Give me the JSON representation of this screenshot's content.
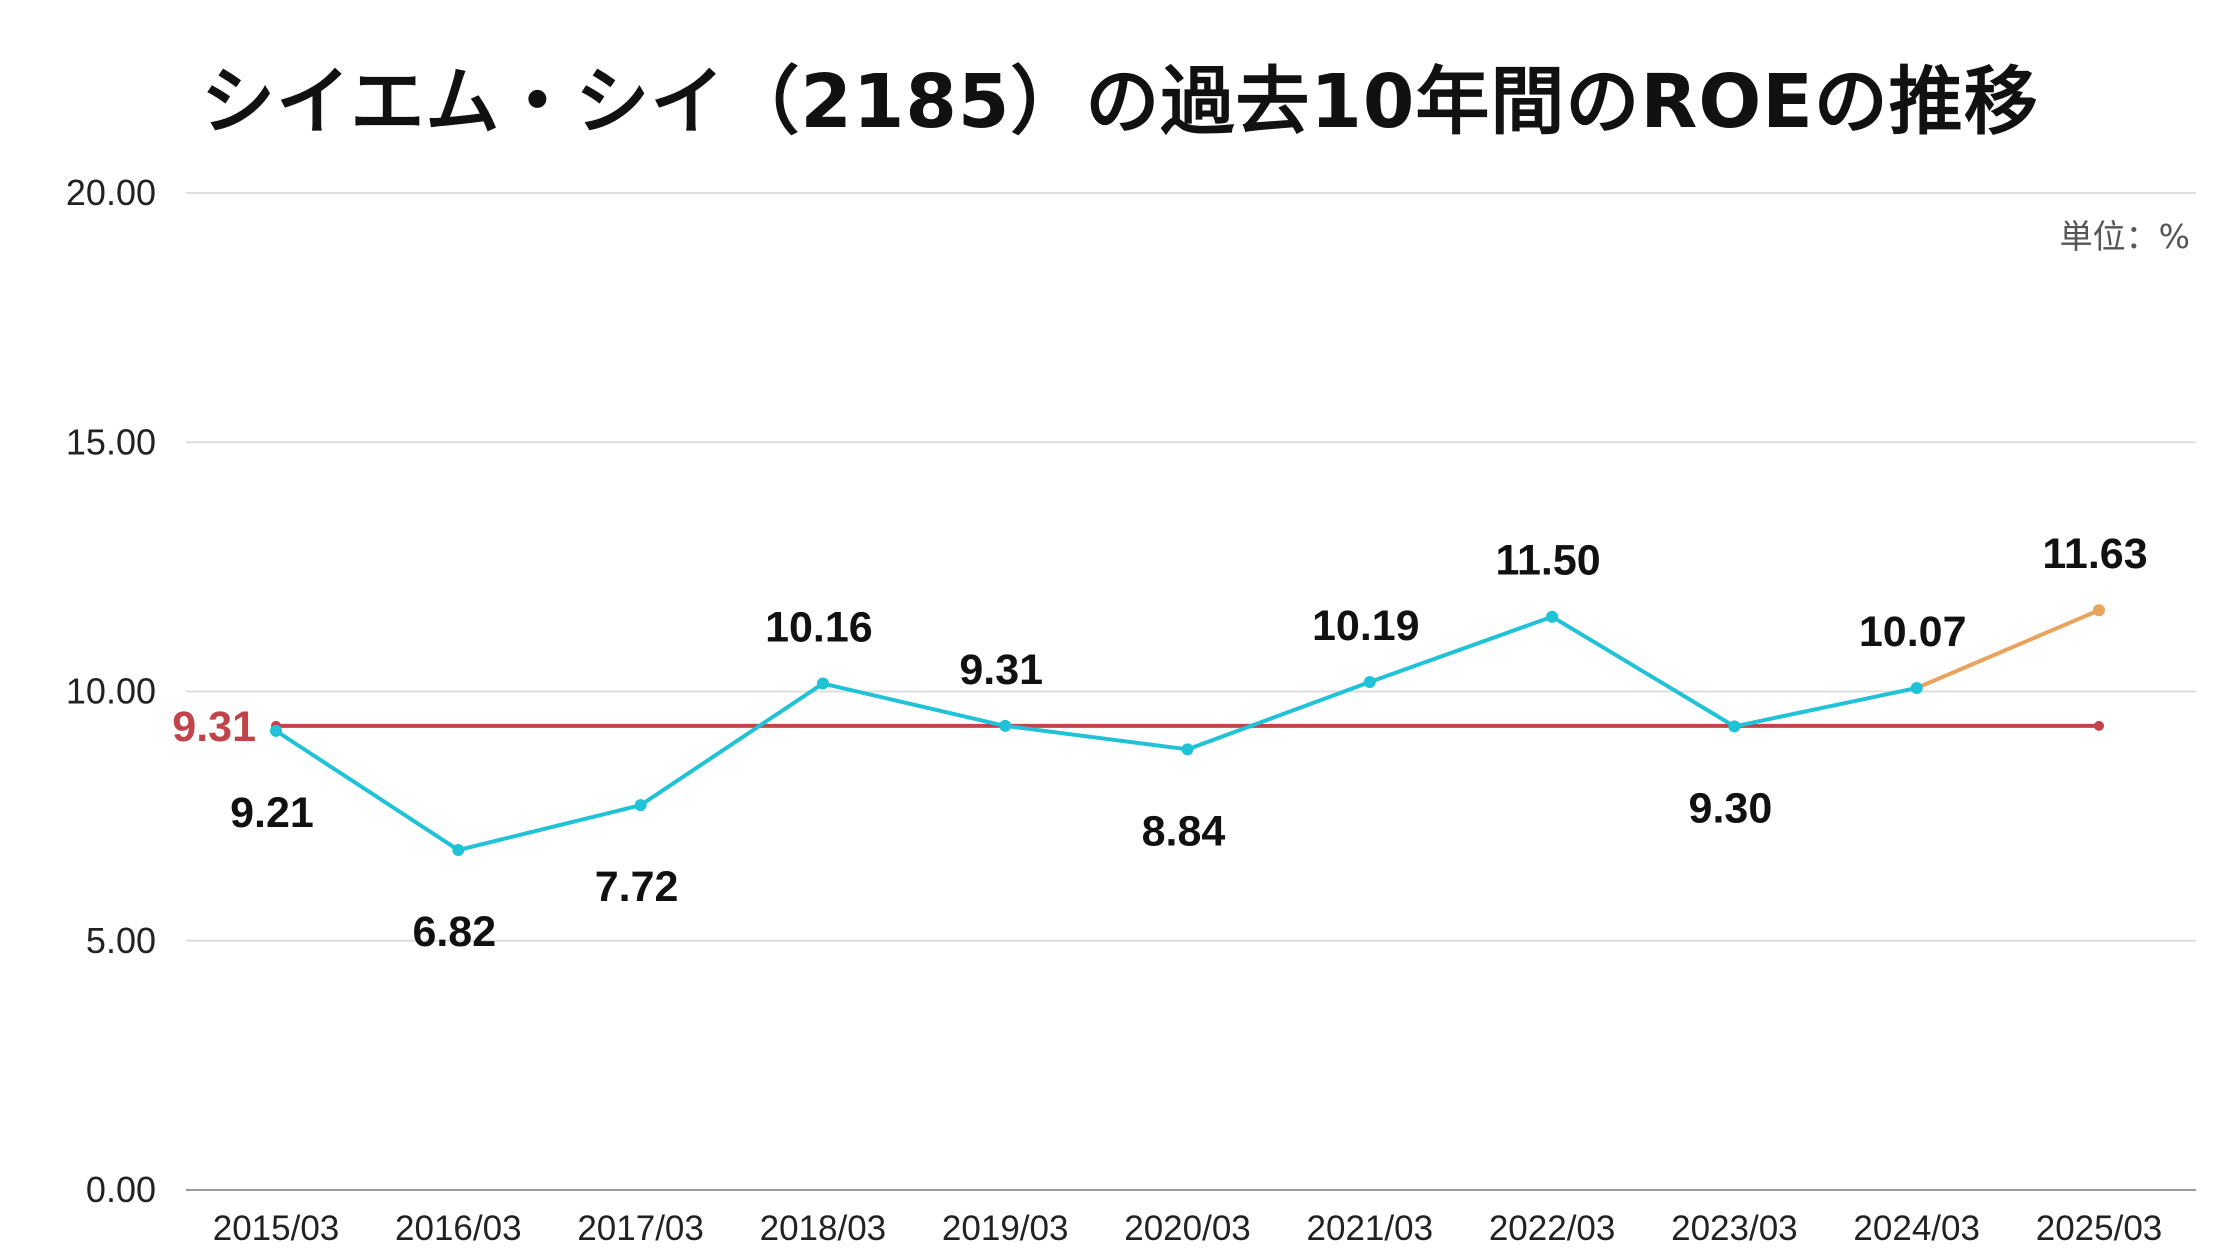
{
  "chart_data": {
    "type": "line",
    "title": "シイエム・シイ（2185）の過去10年間のROEの推移",
    "unit_label": "単位：%",
    "categories": [
      "2015/03",
      "2016/03",
      "2017/03",
      "2018/03",
      "2019/03",
      "2020/03",
      "2021/03",
      "2022/03",
      "2023/03",
      "2024/03",
      "2025/03"
    ],
    "series": [
      {
        "values": [
          9.21,
          6.82,
          7.72,
          10.16,
          9.31,
          8.84,
          10.19,
          11.5,
          9.3,
          10.07,
          11.63
        ],
        "labels": [
          "9.21",
          "6.82",
          "7.72",
          "10.16",
          "9.31",
          "8.84",
          "10.19",
          "11.50",
          "9.30",
          "10.07",
          "11.63"
        ],
        "label_position": [
          "below",
          "below",
          "below",
          "above",
          "above",
          "below",
          "above",
          "above",
          "below",
          "above",
          "above"
        ],
        "color": "#1fc2d6",
        "forecast_color": "#e8a35c",
        "forecast_from_index": 9
      }
    ],
    "average": {
      "value": 9.31,
      "label": "9.31",
      "color": "#c0444a"
    },
    "ylim": [
      0,
      20
    ],
    "yticks": [
      "0.00",
      "5.00",
      "10.00",
      "15.00",
      "20.00"
    ],
    "grid": true,
    "legend": false
  }
}
